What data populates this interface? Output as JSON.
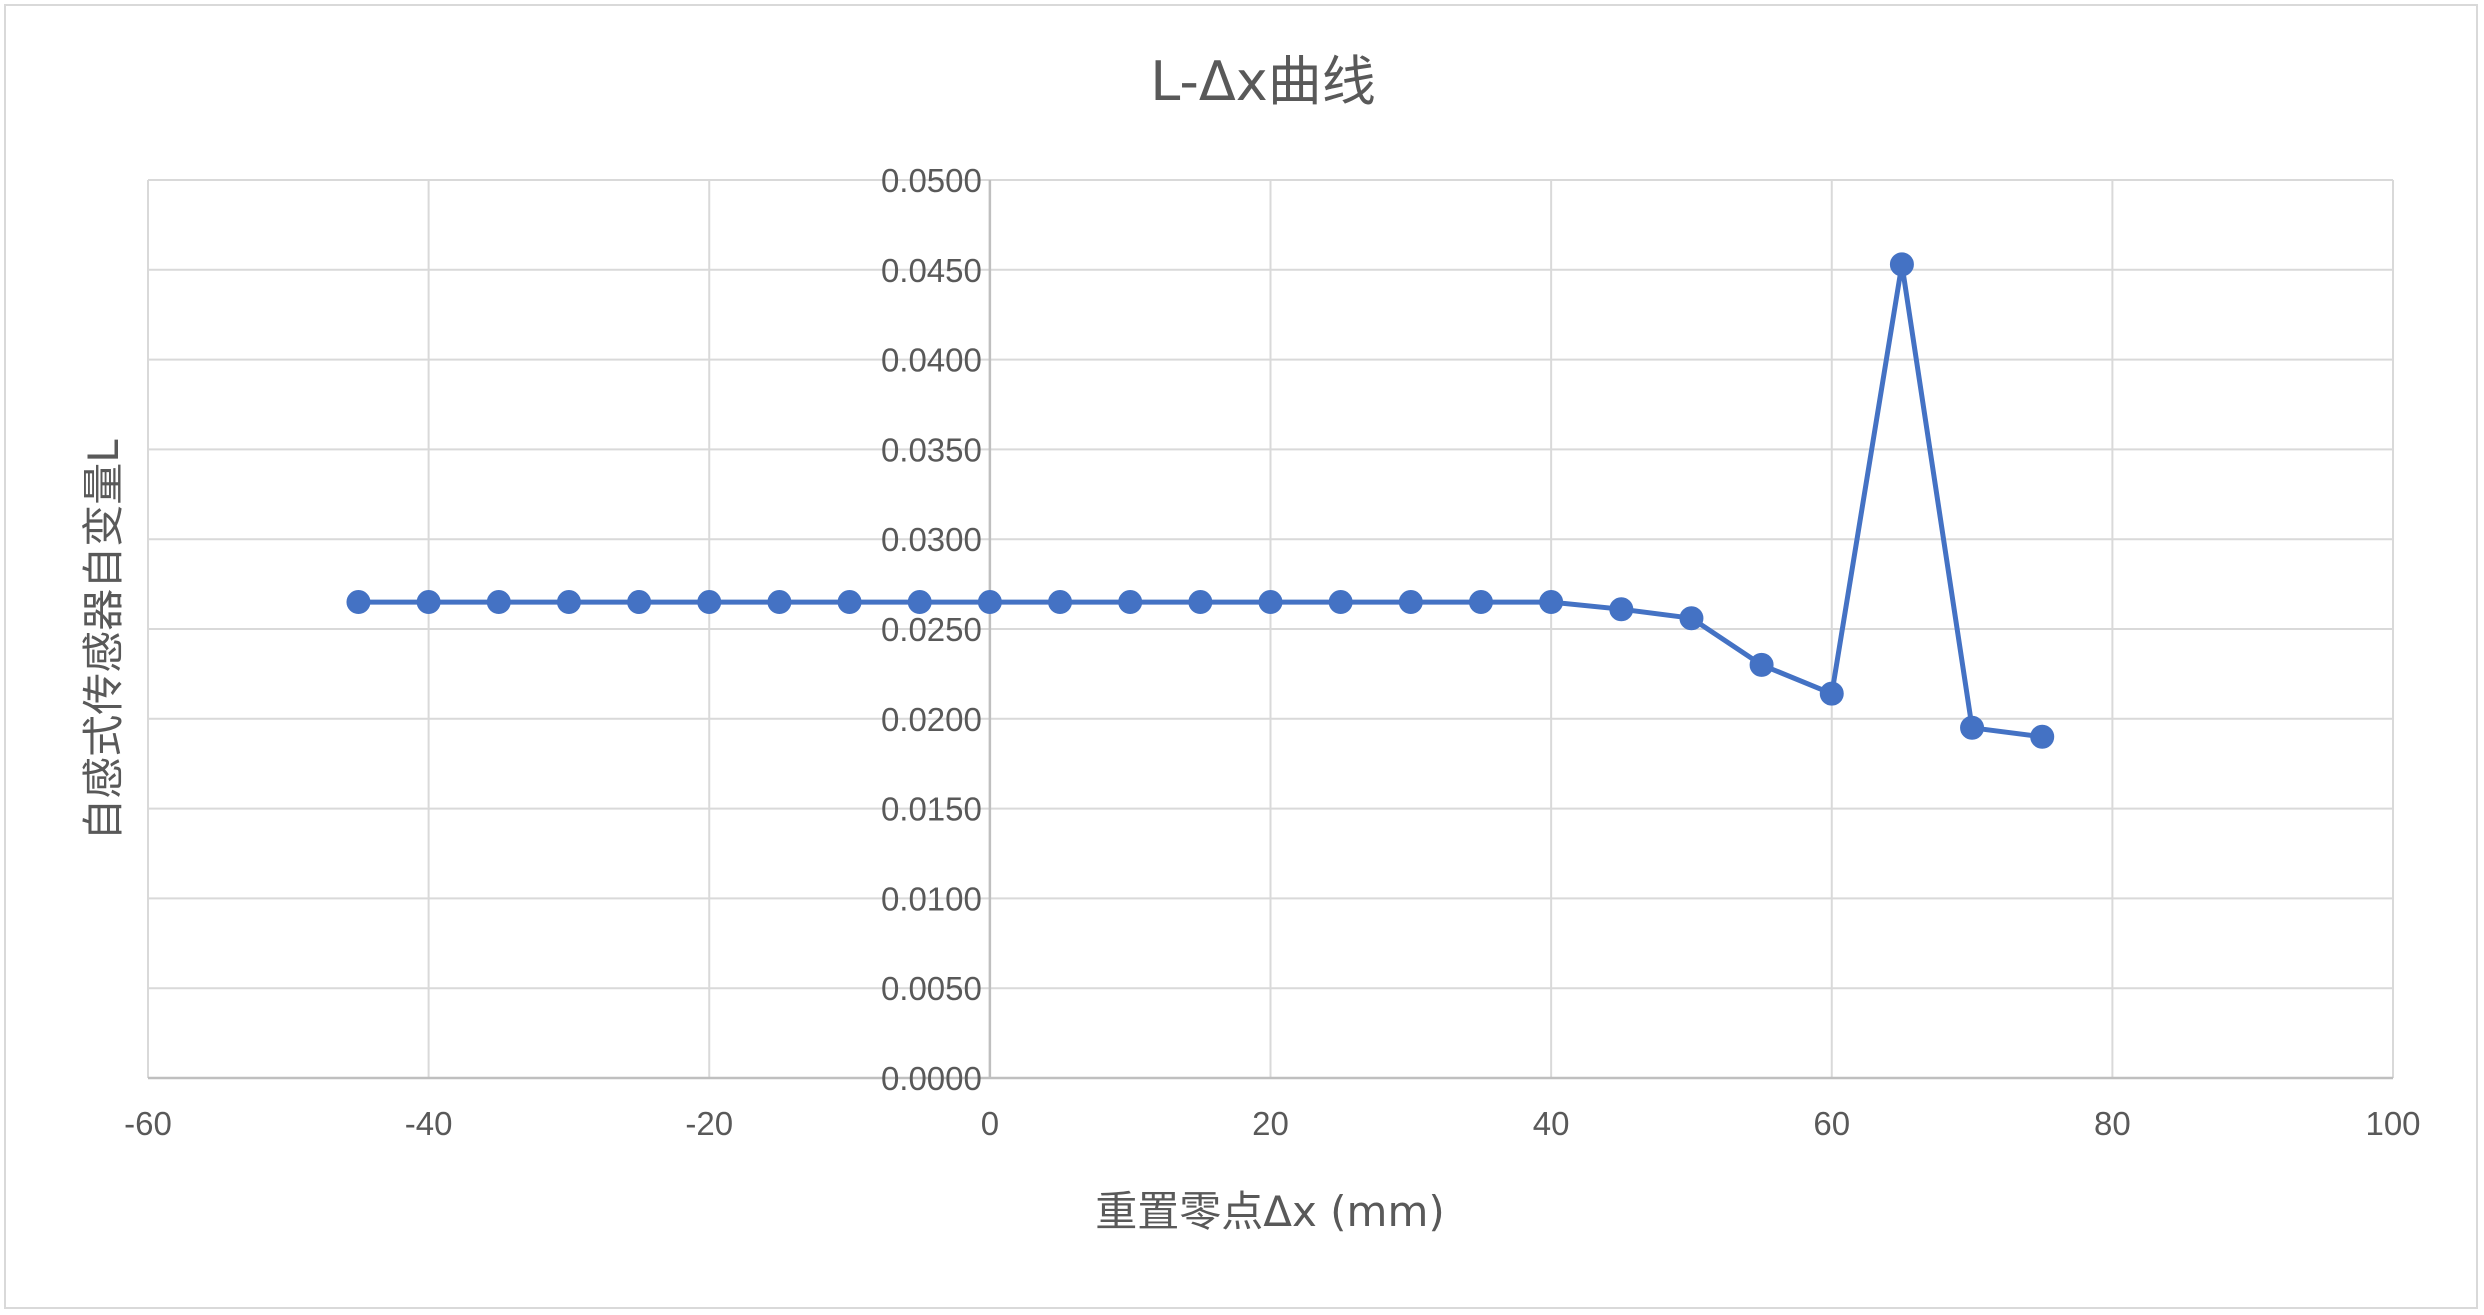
{
  "chart_data": {
    "type": "scatter",
    "title": "L-Δx曲线",
    "xlabel": "重置零点Δx (mm)",
    "ylabel": "自感式传感器自变量L",
    "xlim": [
      -60,
      100
    ],
    "ylim": [
      0,
      0.05
    ],
    "x_ticks": [
      "-60",
      "-40",
      "-20",
      "0",
      "20",
      "40",
      "60",
      "80",
      "100"
    ],
    "y_ticks": [
      "0.0000",
      "0.0050",
      "0.0100",
      "0.0150",
      "0.0200",
      "0.0250",
      "0.0300",
      "0.0350",
      "0.0400",
      "0.0450",
      "0.0500"
    ],
    "grid": true,
    "legend": "none",
    "series": [
      {
        "color": "#4472c4",
        "marker": "circle",
        "line": true,
        "x": [
          -45,
          -40,
          -35,
          -30,
          -25,
          -20,
          -15,
          -10,
          -5,
          0,
          5,
          10,
          15,
          20,
          25,
          30,
          35,
          40,
          45,
          50,
          55,
          60,
          65,
          70,
          75
        ],
        "y": [
          0.0265,
          0.0265,
          0.0265,
          0.0265,
          0.0265,
          0.0265,
          0.0265,
          0.0265,
          0.0265,
          0.0265,
          0.0265,
          0.0265,
          0.0265,
          0.0265,
          0.0265,
          0.0265,
          0.0265,
          0.0265,
          0.0261,
          0.0256,
          0.023,
          0.0214,
          0.0453,
          0.0195,
          0.019
        ]
      }
    ]
  }
}
